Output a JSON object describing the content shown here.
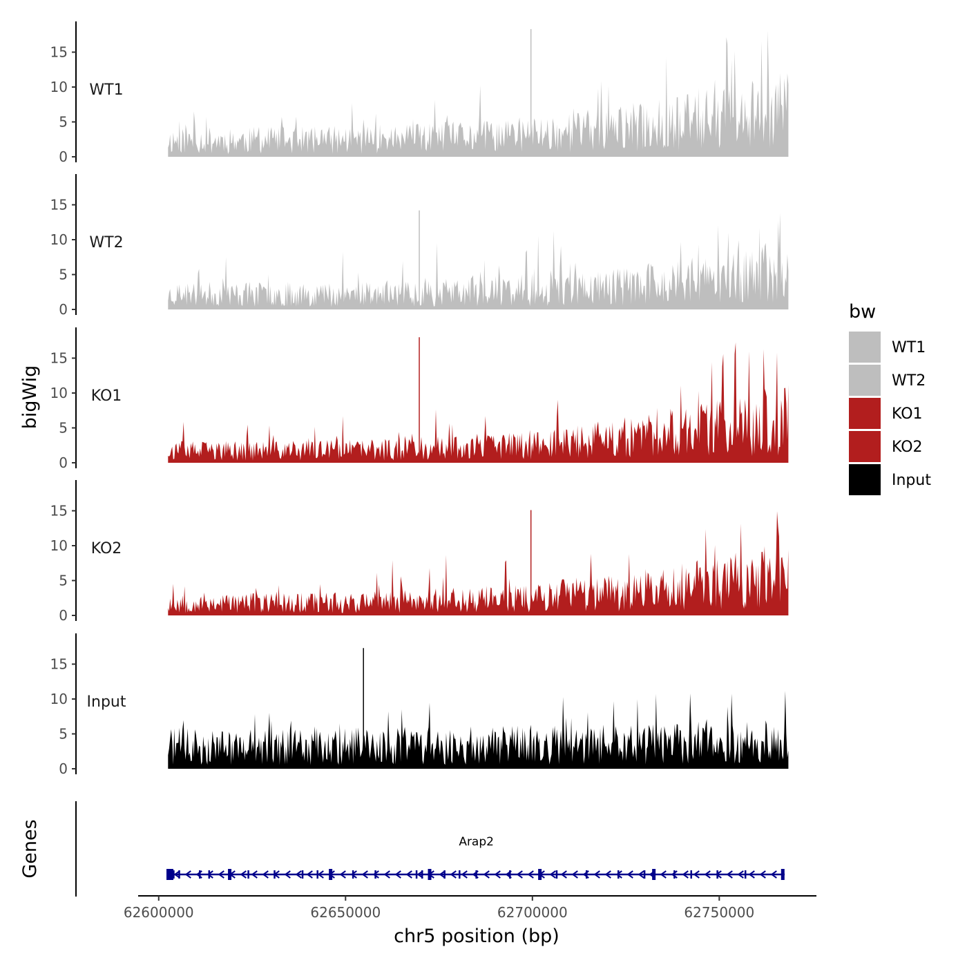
{
  "chart_data": {
    "type": "area",
    "title": "",
    "xlabel": "chr5 position (bp)",
    "ylabel": "bigWig",
    "genes_label": "Genes",
    "chromosome": "chr5",
    "xlim": [
      62594500,
      62776000
    ],
    "x_ticks": [
      62600000,
      62650000,
      62700000,
      62750000
    ],
    "x_tick_labels": [
      "62600000",
      "62650000",
      "62700000",
      "62750000"
    ],
    "data_range": [
      62602500,
      62768500
    ],
    "ylim": [
      0,
      19
    ],
    "y_ticks": [
      0,
      5,
      10,
      15
    ],
    "y_tick_labels": [
      "0",
      "5",
      "10",
      "15"
    ],
    "series": [
      {
        "name": "WT1",
        "label": "WT1",
        "color": "#bebebe",
        "baseline": 2.6,
        "end_boost": 5.0,
        "peak_max": 18.3,
        "seed": 11
      },
      {
        "name": "WT2",
        "label": "WT2",
        "color": "#bebebe",
        "baseline": 2.4,
        "end_boost": 3.6,
        "peak_max": 14.2,
        "seed": 23
      },
      {
        "name": "KO1",
        "label": "KO1",
        "color": "#b21e1e",
        "baseline": 1.9,
        "end_boost": 5.2,
        "peak_max": 18.0,
        "seed": 37
      },
      {
        "name": "KO2",
        "label": "KO2",
        "color": "#b21e1e",
        "baseline": 2.0,
        "end_boost": 4.6,
        "peak_max": 15.1,
        "seed": 53
      },
      {
        "name": "Input",
        "label": "Input",
        "color": "#000000",
        "baseline": 3.6,
        "end_boost": 0.8,
        "peak_max": 17.3,
        "seed": 71
      }
    ],
    "legend": {
      "title": "bw",
      "position": "right",
      "entries": [
        {
          "label": "WT1",
          "color": "#bebebe"
        },
        {
          "label": "WT2",
          "color": "#bebebe"
        },
        {
          "label": "KO1",
          "color": "#b21e1e"
        },
        {
          "label": "KO2",
          "color": "#b21e1e"
        },
        {
          "label": "Input",
          "color": "#000000"
        }
      ]
    },
    "gene": {
      "name": "Arap2",
      "strand": "-",
      "start": 62602500,
      "end": 62767500,
      "color": "#00008b",
      "exons": [
        62603000,
        62604000,
        62605500,
        62611000,
        62613500,
        62619000,
        62624000,
        62631000,
        62638500,
        62642500,
        62646000,
        62652000,
        62658000,
        62669000,
        62670500,
        62672500,
        62676500,
        62680500,
        62685000,
        62694000,
        62702000,
        62706500,
        62714500,
        62723000,
        62730000,
        62732500,
        62738000,
        62742500,
        62749500,
        62757000,
        62767000
      ]
    }
  }
}
